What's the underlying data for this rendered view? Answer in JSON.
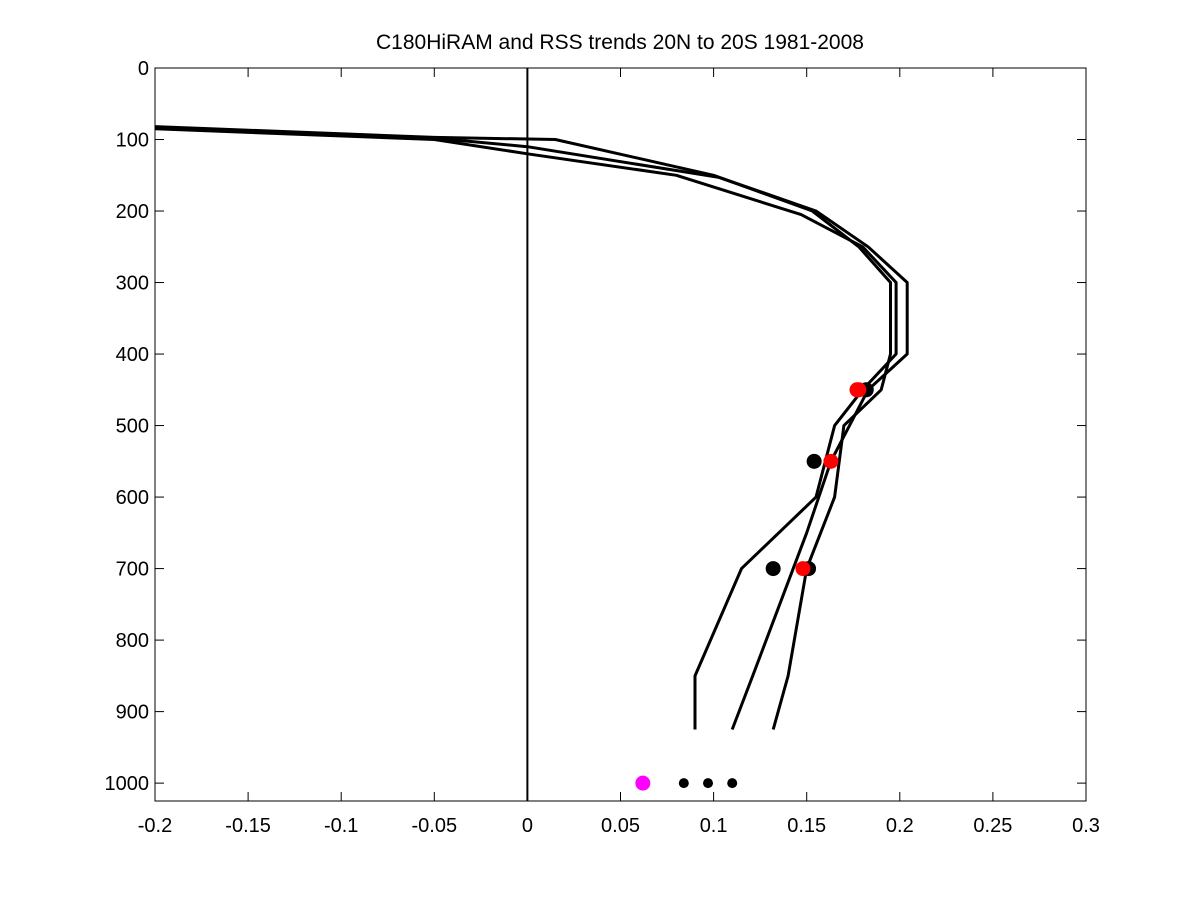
{
  "chart_data": {
    "type": "line",
    "title": "C180HiRAM and RSS trends 20N to 20S 1981-2008",
    "xlabel": "",
    "ylabel": "",
    "xlim": [
      -0.2,
      0.3
    ],
    "ylim": [
      0,
      1025
    ],
    "y_reversed": true,
    "grid": false,
    "legend": "none",
    "xticks": [
      -0.2,
      -0.15,
      -0.1,
      -0.05,
      0,
      0.05,
      0.1,
      0.15,
      0.2,
      0.25,
      0.3
    ],
    "xtick_labels": [
      "-0.2",
      "-0.15",
      "-0.1",
      "-0.05",
      "0",
      "0.05",
      "0.1",
      "0.15",
      "0.2",
      "0.25",
      "0.3"
    ],
    "yticks": [
      0,
      100,
      200,
      300,
      400,
      500,
      600,
      700,
      800,
      900,
      1000
    ],
    "ytick_labels": [
      "0",
      "100",
      "200",
      "300",
      "400",
      "500",
      "600",
      "700",
      "800",
      "900",
      "1000"
    ],
    "zero_line_x": 0,
    "line_color": "#000000",
    "series": [
      {
        "x": [
          -0.2,
          -0.05,
          0.015,
          0.1,
          0.153,
          0.178,
          0.195,
          0.195,
          0.19,
          0.17,
          0.165,
          0.15,
          0.14,
          0.132
        ],
        "y": [
          82,
          97,
          100,
          150,
          200,
          250,
          300,
          400,
          450,
          500,
          600,
          700,
          850,
          925
        ]
      },
      {
        "x": [
          -0.2,
          -0.05,
          0.0,
          0.103,
          0.155,
          0.183,
          0.204,
          0.204,
          0.183,
          0.163,
          0.15,
          0.121,
          0.11
        ],
        "y": [
          83,
          98,
          110,
          153,
          200,
          250,
          300,
          400,
          450,
          550,
          650,
          850,
          925
        ]
      },
      {
        "x": [
          -0.2,
          -0.05,
          0.0,
          0.08,
          0.147,
          0.18,
          0.198,
          0.198,
          0.18,
          0.165,
          0.155,
          0.115,
          0.09,
          0.09
        ],
        "y": [
          85,
          100,
          120,
          150,
          205,
          250,
          300,
          400,
          450,
          500,
          600,
          700,
          850,
          925
        ]
      }
    ],
    "markers": [
      {
        "x": 0.177,
        "y": 450,
        "color": "#ff0000",
        "size": "large"
      },
      {
        "x": 0.182,
        "y": 450,
        "color": "#000000",
        "size": "large"
      },
      {
        "x": 0.178,
        "y": 450,
        "color": "#ff0000",
        "size": "large"
      },
      {
        "x": 0.163,
        "y": 550,
        "color": "#ff0000",
        "size": "large"
      },
      {
        "x": 0.154,
        "y": 550,
        "color": "#000000",
        "size": "large"
      },
      {
        "x": 0.132,
        "y": 700,
        "color": "#000000",
        "size": "large"
      },
      {
        "x": 0.151,
        "y": 700,
        "color": "#000000",
        "size": "large"
      },
      {
        "x": 0.148,
        "y": 700,
        "color": "#ff0000",
        "size": "large"
      },
      {
        "x": 0.062,
        "y": 1000,
        "color": "#ff00ff",
        "size": "large"
      },
      {
        "x": 0.084,
        "y": 1000,
        "color": "#000000",
        "size": "small"
      },
      {
        "x": 0.097,
        "y": 1000,
        "color": "#000000",
        "size": "small"
      },
      {
        "x": 0.11,
        "y": 1000,
        "color": "#000000",
        "size": "small"
      }
    ]
  }
}
